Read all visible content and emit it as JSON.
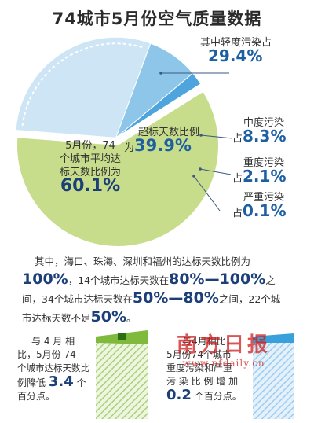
{
  "title": "74城市5月份空气质量数据",
  "colors": {
    "green": "#c8dd8c",
    "blue_light": "#cde5f4",
    "blue_mid": "#8ec6ea",
    "blue": "#4ea4dd",
    "blue_dark": "#1e82c8",
    "navy": "#1c3f78",
    "bar_green": "#7fba3c",
    "bar_blue": "#3aa0dc"
  },
  "labels": {
    "good": {
      "line1": "5月份，74",
      "line2": "个城市平均达",
      "line3": "标天数比例为",
      "value": "60.1%"
    },
    "over": {
      "line1": "超标天数比例",
      "prefix": "为",
      "value": "39.9%"
    },
    "light": {
      "text": "其中轻度污染占",
      "value": "29.4%"
    },
    "moderate": {
      "text": "中度污染",
      "prefix": "占",
      "value": "8.3%"
    },
    "heavy": {
      "text": "重度污染",
      "prefix": "占",
      "value": "2.1%"
    },
    "severe": {
      "text": "严重污染",
      "prefix": "占",
      "value": "0.1%"
    }
  },
  "paragraph": {
    "l1": "其中，海口、珠海、深圳和福州的达标天数比例为",
    "l2a": "100%",
    "l2b": "，14个城市达标天数在",
    "l2c": "80%—100%",
    "l2d": "之",
    "l3a": "间，34个城市达标天数在",
    "l3b": "50%—80%",
    "l3c": "之间，22个城",
    "l4a": "市达标天数不足",
    "l4b": "50%",
    "l4c": "。"
  },
  "note_left": {
    "l1": "与 4 月 相",
    "l2": "比，5月份 74",
    "l3": "个城市达标天数比",
    "l4a": "例降低",
    "l4b": "3.4",
    "l4c": "个",
    "l5": "百分点。"
  },
  "note_right": {
    "l1": "与4月相比，",
    "l2": "5月份74个城市",
    "l3": "重度污染和严重",
    "l4": "污 染 比 例 增 加",
    "l5a": "0.2",
    "l5b": "个百分点。"
  },
  "watermark": {
    "logo": "南方日报",
    "url": "www.nfdaily.cn"
  },
  "chart_data": {
    "type": "pie",
    "title": "74城市5月份空气质量数据",
    "slices": [
      {
        "label": "达标天数比例",
        "value": 60.1
      },
      {
        "label": "轻度污染",
        "value": 29.4
      },
      {
        "label": "中度污染",
        "value": 8.3
      },
      {
        "label": "重度污染",
        "value": 2.1
      },
      {
        "label": "严重污染",
        "value": 0.1
      }
    ],
    "comparisons": [
      {
        "label": "达标天数比例 较4月变化",
        "value": -3.4,
        "unit": "个百分点"
      },
      {
        "label": "重度污染和严重污染比例 较4月变化",
        "value": 0.2,
        "unit": "个百分点"
      }
    ]
  }
}
